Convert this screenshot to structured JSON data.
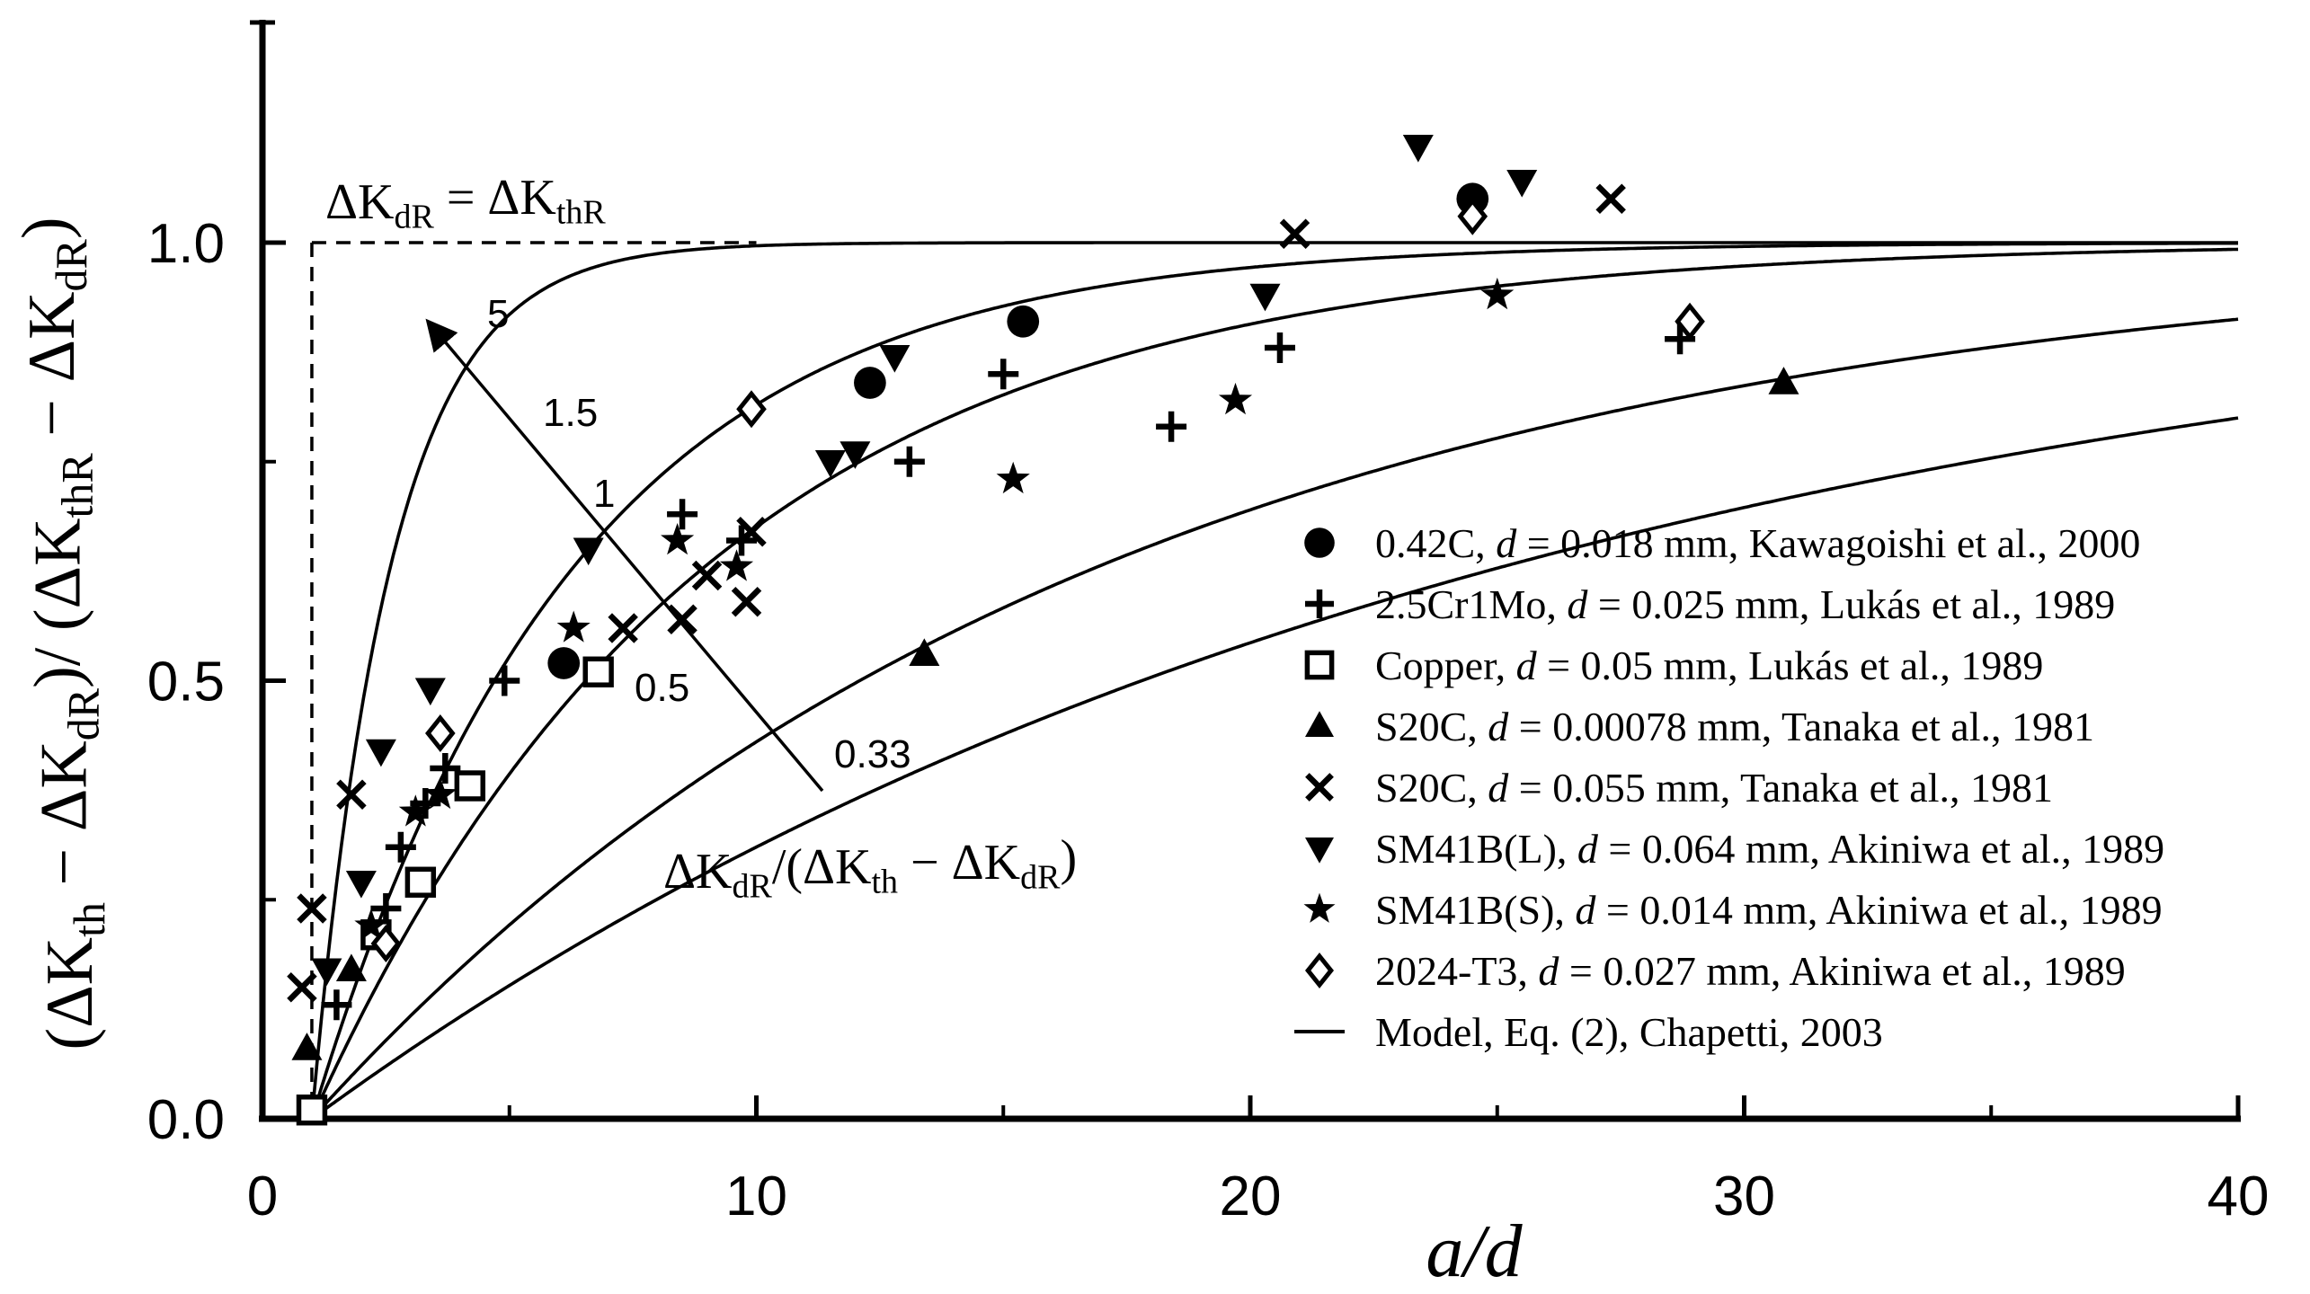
{
  "chart_data": {
    "type": "scatter",
    "title": "",
    "xlabel": "a/d",
    "ylabel": {
      "parts": [
        "(ΔK",
        "th",
        " − ΔK",
        "dR",
        ")/ (ΔK",
        "thR",
        " − ΔK",
        "dR",
        ")"
      ],
      "subs": [
        false,
        true,
        false,
        true,
        false,
        true,
        false,
        true,
        false
      ]
    },
    "xlim": [
      0,
      40
    ],
    "ylim": [
      0,
      1.25
    ],
    "xticks": [
      0,
      10,
      20,
      30,
      40
    ],
    "xtick_labels": [
      "0",
      "10",
      "20",
      "30",
      "40"
    ],
    "yticks": [
      0,
      0.5,
      1.0
    ],
    "ytick_labels": [
      "0.0",
      "0.5",
      "1.0"
    ],
    "grid": false,
    "legend_position": "right",
    "series": [
      {
        "name": "0.42C",
        "label": {
          "pre": "0.42C, ",
          "d": "d",
          "post": " = 0.018 mm, Kawagoishi et al., 2000"
        },
        "marker": "circle",
        "points": [
          [
            6.1,
            0.52
          ],
          [
            12.3,
            0.84
          ],
          [
            15.4,
            0.91
          ],
          [
            24.5,
            1.05
          ]
        ]
      },
      {
        "name": "2.5Cr1Mo",
        "label": {
          "pre": "2.5Cr1Mo, ",
          "d": "d",
          "post": " = 0.025 mm, Lukás et al., 1989"
        },
        "marker": "plus",
        "points": [
          [
            1.5,
            0.13
          ],
          [
            2.5,
            0.24
          ],
          [
            2.8,
            0.31
          ],
          [
            3.3,
            0.36
          ],
          [
            3.7,
            0.4
          ],
          [
            4.9,
            0.5
          ],
          [
            8.5,
            0.69
          ],
          [
            9.7,
            0.66
          ],
          [
            13.1,
            0.75
          ],
          [
            15.0,
            0.85
          ],
          [
            18.4,
            0.79
          ],
          [
            20.6,
            0.88
          ],
          [
            28.7,
            0.89
          ]
        ]
      },
      {
        "name": "Copper",
        "label": {
          "pre": "Copper, ",
          "d": "d",
          "post": " = 0.05 mm, Lukás et al., 1989"
        },
        "marker": "square-open",
        "points": [
          [
            1.0,
            0.01
          ],
          [
            2.3,
            0.21
          ],
          [
            3.2,
            0.27
          ],
          [
            4.2,
            0.38
          ],
          [
            6.8,
            0.51
          ]
        ]
      },
      {
        "name": "S20C (d = 0.00078 mm)",
        "label": {
          "pre": "S20C, ",
          "d": "d",
          "post": " = 0.00078 mm, Tanaka et al., 1981"
        },
        "marker": "triangle-up",
        "points": [
          [
            0.9,
            0.08
          ],
          [
            1.8,
            0.17
          ],
          [
            13.4,
            0.53
          ],
          [
            30.8,
            0.84
          ]
        ]
      },
      {
        "name": "S20C (d = 0.055 mm)",
        "label": {
          "pre": "S20C, ",
          "d": "d",
          "post": " = 0.055 mm, Tanaka et al., 1981"
        },
        "marker": "x",
        "points": [
          [
            0.8,
            0.15
          ],
          [
            1.0,
            0.24
          ],
          [
            1.8,
            0.37
          ],
          [
            7.3,
            0.56
          ],
          [
            8.5,
            0.57
          ],
          [
            9.0,
            0.62
          ],
          [
            9.8,
            0.59
          ],
          [
            9.9,
            0.67
          ],
          [
            20.9,
            1.01
          ],
          [
            27.3,
            1.05
          ]
        ]
      },
      {
        "name": "SM41B(L)",
        "label": {
          "pre": "SM41B(L), ",
          "d": "d",
          "post": " = 0.064 mm, Akiniwa et al., 1989"
        },
        "marker": "triangle-down",
        "points": [
          [
            1.3,
            0.17
          ],
          [
            2.0,
            0.27
          ],
          [
            2.4,
            0.42
          ],
          [
            3.4,
            0.49
          ],
          [
            6.6,
            0.65
          ],
          [
            11.5,
            0.75
          ],
          [
            12.0,
            0.76
          ],
          [
            12.8,
            0.87
          ],
          [
            20.3,
            0.94
          ],
          [
            23.4,
            1.11
          ],
          [
            25.5,
            1.07
          ]
        ]
      },
      {
        "name": "SM41B(S)",
        "label": {
          "pre": "SM41B(S), ",
          "d": "d",
          "post": " = 0.014 mm, Akiniwa et al., 1989"
        },
        "marker": "star",
        "points": [
          [
            2.2,
            0.22
          ],
          [
            3.1,
            0.35
          ],
          [
            3.6,
            0.37
          ],
          [
            6.3,
            0.56
          ],
          [
            8.4,
            0.66
          ],
          [
            9.6,
            0.63
          ],
          [
            15.2,
            0.73
          ],
          [
            19.7,
            0.82
          ],
          [
            25.0,
            0.94
          ]
        ]
      },
      {
        "name": "2024-T3",
        "label": {
          "pre": "2024-T3, ",
          "d": "d",
          "post": " = 0.027 mm, Akiniwa et al., 1989"
        },
        "marker": "diamond-open",
        "points": [
          [
            2.5,
            0.2
          ],
          [
            3.6,
            0.44
          ],
          [
            9.9,
            0.81
          ],
          [
            24.5,
            1.03
          ],
          [
            28.9,
            0.91
          ]
        ]
      }
    ],
    "model": {
      "label": "Model, Eq. (2), Chapetti, 2003",
      "formula": "y = 1 − exp(−k·(a/d − 1)), k = r/8",
      "x_start": 1,
      "r_values": [
        5,
        1.5,
        1,
        0.5,
        0.33
      ]
    },
    "annotations": {
      "threshold": "ΔKdR = ΔKthR",
      "threshold_parts": [
        "ΔK",
        "dR",
        " = ΔK",
        "thR"
      ],
      "arrow_label_parts": [
        "ΔK",
        "dR",
        "/(ΔK",
        "th",
        " − ΔK",
        "dR",
        ")"
      ],
      "curve_labels": [
        "5",
        "1.5",
        "1",
        "0.5",
        "0.33"
      ]
    }
  }
}
